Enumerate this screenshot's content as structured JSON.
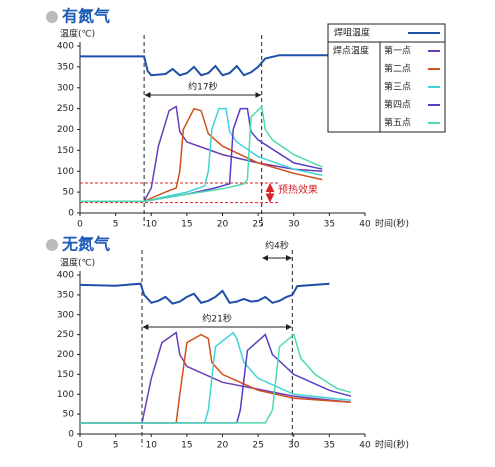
{
  "chart_data": [
    {
      "type": "line",
      "title": "有氮气",
      "y_label": "温度(℃)",
      "x_label": "时间(秒)",
      "xlim": [
        0,
        40
      ],
      "xticks": [
        0,
        5,
        10,
        15,
        20,
        25,
        30,
        35,
        40
      ],
      "ylim": [
        0,
        400
      ],
      "yticks": [
        0,
        50,
        100,
        150,
        200,
        250,
        300,
        350,
        400
      ],
      "vlines": [
        9,
        25.5
      ],
      "span_label": "约17秒",
      "hlines": [
        72,
        25
      ],
      "preheat_label": "预热效果",
      "legend": true,
      "legend_group": "焊点温度",
      "series": [
        {
          "name": "焊咀温度",
          "color": "#1f4fa8",
          "x": [
            0,
            9,
            9.5,
            10,
            12,
            13,
            14,
            15,
            16,
            17,
            18,
            19,
            20,
            21,
            22,
            23,
            24,
            25,
            26,
            28,
            35
          ],
          "values": [
            375,
            375,
            340,
            330,
            333,
            345,
            330,
            335,
            350,
            330,
            335,
            352,
            330,
            335,
            352,
            330,
            337,
            350,
            370,
            378,
            378
          ]
        },
        {
          "name": "第一点",
          "color": "#6a3fb5",
          "x": [
            0,
            9,
            10,
            11,
            12.5,
            13.5,
            14,
            15,
            20,
            25,
            30,
            34
          ],
          "values": [
            28,
            28,
            60,
            160,
            245,
            255,
            195,
            170,
            140,
            120,
            105,
            100
          ]
        },
        {
          "name": "第二点",
          "color": "#d2501e",
          "x": [
            0,
            9,
            12,
            13.5,
            14,
            14.5,
            16,
            17,
            18,
            20,
            25,
            30,
            34
          ],
          "values": [
            28,
            28,
            50,
            60,
            100,
            200,
            250,
            245,
            190,
            160,
            120,
            95,
            80
          ]
        },
        {
          "name": "第三点",
          "color": "#3fd4d8",
          "x": [
            0,
            9,
            15,
            17.5,
            18,
            18.5,
            19.5,
            20.5,
            21,
            22,
            25,
            30,
            34
          ],
          "values": [
            28,
            28,
            50,
            65,
            100,
            200,
            250,
            250,
            195,
            170,
            135,
            105,
            90
          ]
        },
        {
          "name": "第四点",
          "color": "#5a3cc8",
          "x": [
            0,
            9,
            15,
            19,
            21,
            21.5,
            22.5,
            23.5,
            24,
            25,
            30,
            34
          ],
          "values": [
            28,
            28,
            45,
            60,
            70,
            200,
            250,
            250,
            195,
            175,
            120,
            105
          ]
        },
        {
          "name": "第五点",
          "color": "#4fd9b0",
          "x": [
            0,
            9,
            15,
            20,
            23,
            23.5,
            24,
            25.5,
            26,
            27,
            30,
            34
          ],
          "values": [
            28,
            28,
            45,
            58,
            70,
            80,
            230,
            255,
            200,
            175,
            140,
            110
          ]
        }
      ]
    },
    {
      "type": "line",
      "title": "无氮气",
      "y_label": "温度(℃)",
      "x_label": "时间(秒)",
      "xlim": [
        0,
        40
      ],
      "xticks": [
        0,
        5,
        10,
        15,
        20,
        25,
        30,
        35,
        40
      ],
      "ylim": [
        0,
        400
      ],
      "yticks": [
        0,
        50,
        100,
        150,
        200,
        250,
        300,
        350,
        400
      ],
      "vlines": [
        8.7,
        29.8
      ],
      "span_label": "约21秒",
      "gap_label": "约4秒",
      "series": [
        {
          "color": "#1f4fa8",
          "x": [
            0,
            5,
            8.5,
            9,
            10,
            11,
            12,
            13,
            14,
            15,
            16,
            17,
            18,
            19,
            20,
            21,
            22,
            23,
            24,
            25,
            26,
            27,
            28,
            29,
            29.8,
            30.5,
            35
          ],
          "values": [
            375,
            373,
            378,
            350,
            330,
            335,
            345,
            328,
            333,
            345,
            353,
            330,
            335,
            345,
            360,
            330,
            333,
            340,
            333,
            335,
            345,
            330,
            335,
            345,
            350,
            372,
            378
          ]
        },
        {
          "color": "#6a3fb5",
          "x": [
            0,
            8.7,
            10,
            11.5,
            13.5,
            14,
            15,
            20,
            30,
            38
          ],
          "values": [
            28,
            28,
            140,
            230,
            255,
            200,
            170,
            130,
            95,
            80
          ]
        },
        {
          "color": "#d2501e",
          "x": [
            0,
            13.5,
            14,
            15,
            17,
            18,
            18.5,
            20,
            25,
            30,
            38
          ],
          "values": [
            28,
            28,
            100,
            230,
            250,
            240,
            180,
            150,
            110,
            90,
            80
          ]
        },
        {
          "color": "#3fd4d8",
          "x": [
            0,
            17.5,
            18,
            19,
            21.5,
            22,
            23,
            25,
            30,
            38
          ],
          "values": [
            28,
            28,
            60,
            220,
            255,
            240,
            180,
            140,
            100,
            85
          ]
        },
        {
          "color": "#5a3cc8",
          "x": [
            0,
            22,
            22.5,
            23.5,
            26,
            27,
            30,
            35,
            38
          ],
          "values": [
            28,
            28,
            60,
            210,
            250,
            200,
            150,
            110,
            95
          ]
        },
        {
          "color": "#4fd9b0",
          "x": [
            0,
            26,
            27,
            28,
            30,
            31,
            33,
            36,
            38
          ],
          "values": [
            28,
            28,
            60,
            220,
            250,
            190,
            150,
            115,
            105
          ]
        }
      ]
    }
  ]
}
